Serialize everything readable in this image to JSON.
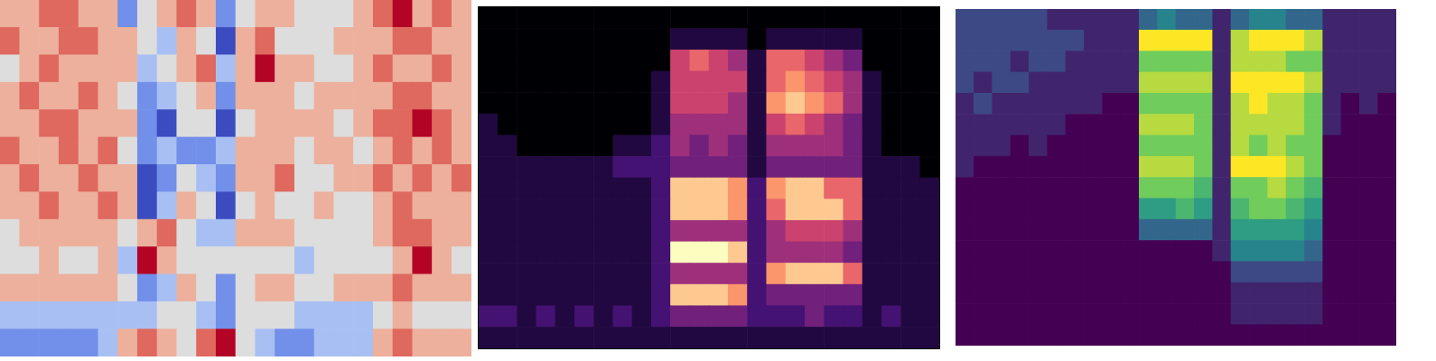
{
  "chart_data": [
    {
      "type": "heatmap",
      "color": "coolwarm",
      "tick_labels": false,
      "values": [
        [
          6,
          6,
          7,
          7,
          6,
          6,
          3,
          5,
          6,
          7,
          6,
          3,
          5,
          6,
          6,
          5,
          5,
          5,
          6,
          7,
          8,
          6,
          7,
          6
        ],
        [
          7,
          6,
          6,
          7,
          7,
          6,
          6,
          5,
          4,
          6,
          5,
          2,
          6,
          7,
          5,
          5,
          5,
          6,
          6,
          6,
          7,
          7,
          6,
          6
        ],
        [
          5,
          6,
          7,
          6,
          6,
          6,
          6,
          4,
          5,
          6,
          7,
          4,
          6,
          8,
          6,
          6,
          5,
          5,
          6,
          7,
          6,
          6,
          7,
          6
        ],
        [
          6,
          7,
          6,
          6,
          7,
          6,
          5,
          3,
          4,
          5,
          6,
          3,
          6,
          6,
          6,
          5,
          6,
          6,
          6,
          6,
          7,
          7,
          6,
          6
        ],
        [
          6,
          6,
          7,
          7,
          6,
          6,
          6,
          3,
          2,
          5,
          5,
          2,
          5,
          6,
          6,
          6,
          6,
          5,
          6,
          7,
          7,
          8,
          7,
          6
        ],
        [
          7,
          6,
          6,
          7,
          6,
          7,
          5,
          3,
          4,
          3,
          3,
          4,
          6,
          6,
          6,
          5,
          6,
          6,
          5,
          6,
          7,
          6,
          7,
          6
        ],
        [
          6,
          7,
          6,
          6,
          7,
          6,
          6,
          2,
          3,
          5,
          4,
          3,
          6,
          6,
          7,
          5,
          5,
          6,
          6,
          7,
          6,
          7,
          6,
          7
        ],
        [
          6,
          6,
          7,
          6,
          6,
          7,
          6,
          2,
          4,
          6,
          5,
          2,
          5,
          6,
          5,
          5,
          6,
          5,
          5,
          6,
          7,
          6,
          6,
          6
        ],
        [
          5,
          6,
          6,
          6,
          6,
          6,
          5,
          6,
          7,
          5,
          4,
          4,
          6,
          6,
          6,
          5,
          5,
          5,
          5,
          6,
          7,
          7,
          6,
          6
        ],
        [
          5,
          5,
          6,
          5,
          5,
          6,
          4,
          8,
          6,
          5,
          5,
          5,
          5,
          5,
          5,
          4,
          5,
          5,
          5,
          5,
          6,
          8,
          6,
          5
        ],
        [
          6,
          6,
          6,
          6,
          6,
          6,
          5,
          3,
          4,
          6,
          5,
          3,
          5,
          6,
          6,
          5,
          5,
          6,
          6,
          6,
          7,
          6,
          6,
          6
        ],
        [
          4,
          4,
          4,
          4,
          4,
          4,
          4,
          4,
          5,
          5,
          4,
          3,
          5,
          5,
          5,
          4,
          4,
          4,
          4,
          5,
          6,
          5,
          5,
          5
        ],
        [
          3,
          3,
          3,
          3,
          3,
          4,
          6,
          7,
          6,
          5,
          7,
          8,
          5,
          4,
          3,
          3,
          4,
          4,
          4,
          6,
          7,
          6,
          6,
          6
        ]
      ]
    },
    {
      "type": "heatmap",
      "color": "magma",
      "tick_labels": false,
      "values": [
        [
          0,
          0,
          0,
          0,
          0,
          0,
          0,
          0,
          0,
          0,
          0,
          0,
          0,
          0,
          0,
          0,
          0,
          0,
          0,
          0,
          0,
          0,
          0,
          0
        ],
        [
          0,
          0,
          0,
          0,
          0,
          0,
          0,
          0,
          0,
          0,
          1,
          1,
          1,
          1,
          0,
          1,
          1,
          1,
          1,
          1,
          0,
          0,
          0,
          0
        ],
        [
          0,
          0,
          0,
          0,
          0,
          0,
          0,
          0,
          0,
          0,
          5,
          6,
          5,
          4,
          1,
          6,
          6,
          5,
          4,
          3,
          0,
          0,
          0,
          0
        ],
        [
          0,
          0,
          0,
          0,
          0,
          0,
          0,
          0,
          0,
          1,
          5,
          5,
          5,
          5,
          1,
          6,
          7,
          6,
          5,
          4,
          1,
          0,
          0,
          0
        ],
        [
          0,
          0,
          0,
          0,
          0,
          0,
          0,
          0,
          0,
          1,
          5,
          5,
          5,
          4,
          1,
          7,
          8,
          7,
          6,
          4,
          1,
          0,
          0,
          0
        ],
        [
          1,
          0,
          0,
          0,
          0,
          0,
          0,
          0,
          0,
          1,
          4,
          4,
          4,
          4,
          1,
          5,
          6,
          5,
          4,
          3,
          1,
          0,
          0,
          0
        ],
        [
          1,
          1,
          0,
          0,
          0,
          0,
          0,
          1,
          1,
          2,
          4,
          3,
          4,
          3,
          1,
          4,
          4,
          4,
          4,
          3,
          1,
          0,
          0,
          0
        ],
        [
          1,
          1,
          1,
          1,
          1,
          1,
          1,
          2,
          2,
          2,
          3,
          3,
          3,
          3,
          1,
          3,
          3,
          3,
          3,
          3,
          1,
          1,
          1,
          0
        ],
        [
          1,
          1,
          1,
          1,
          1,
          1,
          1,
          1,
          1,
          2,
          8,
          8,
          8,
          7,
          2,
          7,
          8,
          8,
          6,
          6,
          1,
          1,
          1,
          1
        ],
        [
          1,
          1,
          1,
          1,
          1,
          1,
          1,
          1,
          1,
          2,
          8,
          8,
          8,
          7,
          2,
          6,
          8,
          8,
          8,
          6,
          1,
          1,
          1,
          1
        ],
        [
          1,
          1,
          1,
          1,
          1,
          1,
          1,
          1,
          1,
          2,
          4,
          4,
          4,
          4,
          2,
          4,
          5,
          5,
          5,
          4,
          1,
          1,
          1,
          1
        ],
        [
          1,
          1,
          1,
          1,
          1,
          1,
          1,
          1,
          1,
          2,
          9,
          9,
          9,
          8,
          2,
          4,
          4,
          4,
          4,
          3,
          1,
          1,
          1,
          1
        ],
        [
          1,
          1,
          1,
          1,
          1,
          1,
          1,
          1,
          1,
          2,
          4,
          4,
          4,
          4,
          2,
          7,
          8,
          8,
          8,
          6,
          1,
          1,
          1,
          1
        ],
        [
          1,
          1,
          1,
          1,
          1,
          1,
          1,
          1,
          1,
          2,
          8,
          8,
          8,
          7,
          2,
          3,
          3,
          3,
          3,
          3,
          1,
          1,
          1,
          1
        ],
        [
          2,
          2,
          1,
          2,
          1,
          2,
          1,
          2,
          1,
          2,
          3,
          3,
          3,
          3,
          2,
          2,
          2,
          3,
          2,
          2,
          1,
          2,
          1,
          1
        ],
        [
          1,
          1,
          1,
          1,
          1,
          1,
          1,
          1,
          1,
          1,
          1,
          1,
          1,
          1,
          1,
          1,
          1,
          1,
          1,
          1,
          1,
          1,
          1,
          1
        ]
      ]
    },
    {
      "type": "heatmap",
      "color": "viridis",
      "tick_labels": false,
      "values": [
        [
          2,
          2,
          2,
          2,
          2,
          1,
          1,
          1,
          1,
          1,
          3,
          4,
          3,
          3,
          1,
          3,
          4,
          4,
          3,
          3,
          1,
          1,
          1,
          1
        ],
        [
          2,
          2,
          2,
          2,
          2,
          2,
          2,
          1,
          1,
          1,
          9,
          9,
          9,
          9,
          1,
          8,
          9,
          9,
          9,
          8,
          1,
          1,
          1,
          1
        ],
        [
          2,
          2,
          2,
          1,
          2,
          2,
          1,
          1,
          1,
          1,
          7,
          7,
          7,
          7,
          1,
          8,
          8,
          8,
          7,
          7,
          1,
          1,
          1,
          1
        ],
        [
          2,
          1,
          2,
          2,
          1,
          1,
          1,
          1,
          1,
          1,
          8,
          8,
          8,
          8,
          1,
          9,
          9,
          9,
          9,
          8,
          1,
          1,
          1,
          1
        ],
        [
          1,
          2,
          1,
          1,
          1,
          1,
          1,
          1,
          0,
          0,
          7,
          7,
          7,
          7,
          1,
          8,
          9,
          8,
          8,
          7,
          1,
          0,
          1,
          0
        ],
        [
          1,
          1,
          1,
          1,
          1,
          1,
          0,
          0,
          0,
          0,
          8,
          8,
          8,
          7,
          1,
          8,
          8,
          8,
          8,
          7,
          1,
          0,
          0,
          0
        ],
        [
          1,
          1,
          1,
          0,
          1,
          0,
          0,
          0,
          0,
          0,
          7,
          7,
          7,
          7,
          1,
          8,
          7,
          8,
          7,
          7,
          0,
          0,
          0,
          0
        ],
        [
          1,
          0,
          0,
          0,
          0,
          0,
          0,
          0,
          0,
          0,
          8,
          8,
          8,
          7,
          1,
          9,
          9,
          9,
          8,
          7,
          0,
          0,
          0,
          0
        ],
        [
          0,
          0,
          0,
          0,
          0,
          0,
          0,
          0,
          0,
          0,
          7,
          7,
          7,
          6,
          1,
          7,
          7,
          8,
          7,
          6,
          0,
          0,
          0,
          0
        ],
        [
          0,
          0,
          0,
          0,
          0,
          0,
          0,
          0,
          0,
          0,
          5,
          5,
          6,
          5,
          1,
          6,
          7,
          7,
          6,
          5,
          0,
          0,
          0,
          0
        ],
        [
          0,
          0,
          0,
          0,
          0,
          0,
          0,
          0,
          0,
          0,
          3,
          3,
          3,
          3,
          1,
          5,
          5,
          5,
          5,
          4,
          0,
          0,
          0,
          0
        ],
        [
          0,
          0,
          0,
          0,
          0,
          0,
          0,
          0,
          0,
          0,
          0,
          0,
          0,
          0,
          1,
          4,
          4,
          4,
          4,
          3,
          0,
          0,
          0,
          0
        ],
        [
          0,
          0,
          0,
          0,
          0,
          0,
          0,
          0,
          0,
          0,
          0,
          0,
          0,
          0,
          0,
          2,
          2,
          2,
          2,
          2,
          0,
          0,
          0,
          0
        ],
        [
          0,
          0,
          0,
          0,
          0,
          0,
          0,
          0,
          0,
          0,
          0,
          0,
          0,
          0,
          0,
          1,
          1,
          1,
          1,
          1,
          0,
          0,
          0,
          0
        ],
        [
          0,
          0,
          0,
          0,
          0,
          0,
          0,
          0,
          0,
          0,
          0,
          0,
          0,
          0,
          0,
          1,
          1,
          1,
          1,
          1,
          0,
          0,
          0,
          0
        ],
        [
          0,
          0,
          0,
          0,
          0,
          0,
          0,
          0,
          0,
          0,
          0,
          0,
          0,
          0,
          0,
          0,
          0,
          0,
          0,
          0,
          0,
          0,
          0,
          0
        ]
      ]
    }
  ]
}
